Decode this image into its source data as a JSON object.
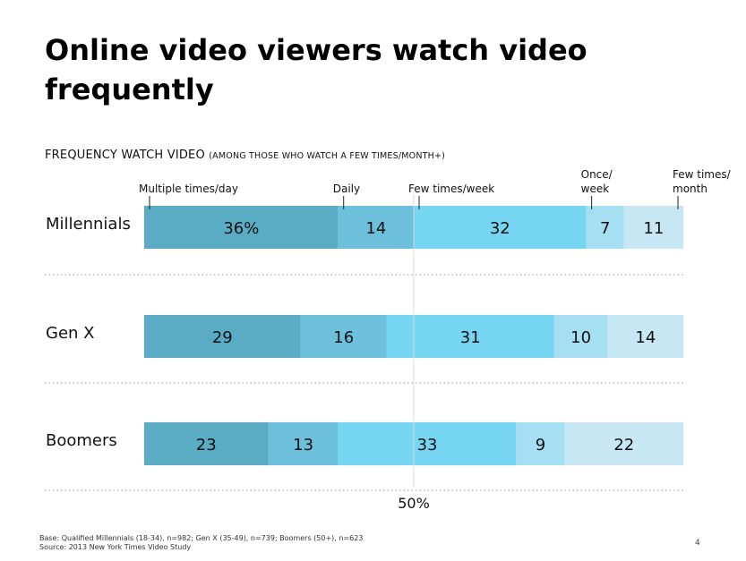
{
  "slide": {
    "title": "Online video viewers watch video frequently",
    "subtitle_main": "FREQUENCY WATCH VIDEO",
    "subtitle_note": "(AMONG THOSE WHO WATCH A FEW TIMES/MONTH+)",
    "footnote_line1": "Base: Qualified Millennials (18-34), n=982; Gen X (35-49), n=739; Boomers (50+), n=623",
    "footnote_line2": "Source: 2013 New York Times Video Study",
    "page_number": "4"
  },
  "chart_data": {
    "type": "bar",
    "orientation": "horizontal",
    "stacked": true,
    "categories": [
      "Millennials",
      "Gen X",
      "Boomers"
    ],
    "series": [
      {
        "name": "Multiple times/day",
        "values": [
          36,
          29,
          23
        ],
        "labels": [
          "36%",
          "29",
          "23"
        ],
        "color": "#5aabc4"
      },
      {
        "name": "Daily",
        "values": [
          14,
          16,
          13
        ],
        "labels": [
          "14",
          "16",
          "13"
        ],
        "color": "#6cc0dc"
      },
      {
        "name": "Few times/week",
        "values": [
          32,
          31,
          33
        ],
        "labels": [
          "32",
          "31",
          "33"
        ],
        "color": "#76d6f2"
      },
      {
        "name": "Once/ week",
        "values": [
          7,
          10,
          9
        ],
        "labels": [
          "7",
          "10",
          "9"
        ],
        "color": "#a6def2"
      },
      {
        "name": "Few times/ month",
        "values": [
          11,
          14,
          22
        ],
        "labels": [
          "11",
          "14",
          "22"
        ],
        "color": "#c7e7f5"
      }
    ],
    "xlim": [
      0,
      100
    ],
    "reference_line": {
      "value": 50,
      "label": "50%"
    },
    "legend_placement": "top (labels above first bar)"
  }
}
